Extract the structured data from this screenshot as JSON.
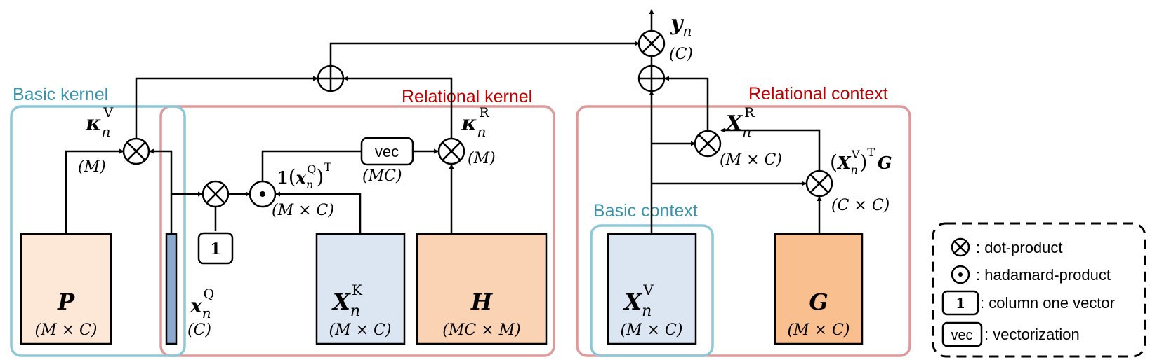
{
  "regions": {
    "basic_kernel": {
      "label": "Basic kernel",
      "color": "#8EC7D6"
    },
    "relational_kernel": {
      "label": "Relational kernel",
      "color": "#C00000",
      "border": "#DE9A9A"
    },
    "relational_context": {
      "label": "Relational context",
      "color": "#C00000",
      "border": "#DE9A9A"
    },
    "basic_context": {
      "label": "Basic context",
      "color": "#3A93AE",
      "border": "#8EC7D6"
    }
  },
  "blocks": {
    "P": {
      "symbol": "P",
      "dims": "(M × C)",
      "fill": "#FDE8D8"
    },
    "XK": {
      "symbol": "X",
      "sub": "n",
      "sup": "K",
      "dims": "(M × C)",
      "fill": "#DCE6F2"
    },
    "H": {
      "symbol": "H",
      "dims": "(MC × M)",
      "fill": "#FAD3B4"
    },
    "XV": {
      "symbol": "X",
      "sub": "n",
      "sup": "V",
      "dims": "(M × C)",
      "fill": "#DCE6F2"
    },
    "G": {
      "symbol": "G",
      "dims": "(M × C)",
      "fill": "#F9BF8F"
    },
    "xQ_bar": {
      "symbol": "x",
      "sub": "n",
      "sup": "Q",
      "dims": "(C)",
      "fill": "#8EA9CF"
    }
  },
  "labels": {
    "kappaV": {
      "symbol": "κ",
      "sub": "n",
      "sup": "V",
      "dims": "(M)"
    },
    "kappaR": {
      "symbol": "κ",
      "sub": "n",
      "sup": "R",
      "dims": "(M)"
    },
    "one_xQT": {
      "one": "1",
      "x": "x",
      "sub": "n",
      "sup": "Q",
      "T": "T",
      "dims": "(M × C)"
    },
    "vec_dims": "(MC)",
    "XR": {
      "symbol": "X",
      "sub": "n",
      "sup": "R",
      "dims": "(M × C)"
    },
    "XVTG": {
      "symbol": "X",
      "sub": "n",
      "sup": "V",
      "T": "T",
      "G": "G",
      "dims": "(C × C)"
    },
    "yn": {
      "symbol": "y",
      "sub": "n",
      "dims": "(C)"
    }
  },
  "ops": {
    "vec_label": "vec",
    "one_label": "1"
  },
  "legend": {
    "items": [
      {
        "icon": "dot-product",
        "text": ": dot-product"
      },
      {
        "icon": "hadamard-product",
        "text": ": hadamard-product"
      },
      {
        "icon": "one",
        "icon_text": "1",
        "text": ": column one vector"
      },
      {
        "icon": "vec",
        "icon_text": "vec",
        "text": ": vectorization"
      }
    ]
  }
}
